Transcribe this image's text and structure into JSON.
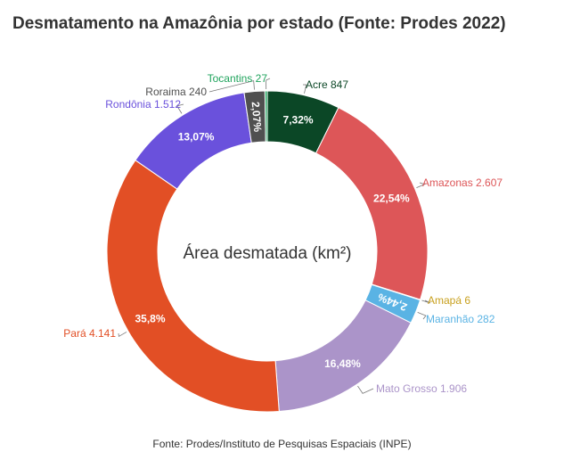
{
  "title": "Desmatamento na Amazônia por estado (Fonte: Prodes 2022)",
  "source": "Fonte: Prodes/Instituto de Pesquisas Espaciais (INPE)",
  "chart_data": {
    "type": "pie",
    "center_label": "Área desmatada (km²)",
    "slices": [
      {
        "name": "Acre",
        "value_label": "847",
        "value": 847,
        "percent_label": "7,32%",
        "color": "#0b4726"
      },
      {
        "name": "Amazonas",
        "value_label": "2.607",
        "value": 2607,
        "percent_label": "22,54%",
        "color": "#dd5658"
      },
      {
        "name": "Amapá",
        "value_label": "6",
        "value": 6,
        "percent_label": "",
        "color": "#c8a01e"
      },
      {
        "name": "Maranhão",
        "value_label": "282",
        "value": 282,
        "percent_label": "2,44%",
        "color": "#5ab3e4"
      },
      {
        "name": "Mato Grosso",
        "value_label": "1.906",
        "value": 1906,
        "percent_label": "16,48%",
        "color": "#ab94c9"
      },
      {
        "name": "Pará",
        "value_label": "4.141",
        "value": 4141,
        "percent_label": "35,8%",
        "color": "#e24f25"
      },
      {
        "name": "Rondônia",
        "value_label": "1.512",
        "value": 1512,
        "percent_label": "13,07%",
        "color": "#6a51dc"
      },
      {
        "name": "Roraima",
        "value_label": "240",
        "value": 240,
        "percent_label": "2,07%",
        "color": "#505050"
      },
      {
        "name": "Tocantins",
        "value_label": "27",
        "value": 27,
        "percent_label": "",
        "color": "#1fa35c"
      }
    ]
  }
}
